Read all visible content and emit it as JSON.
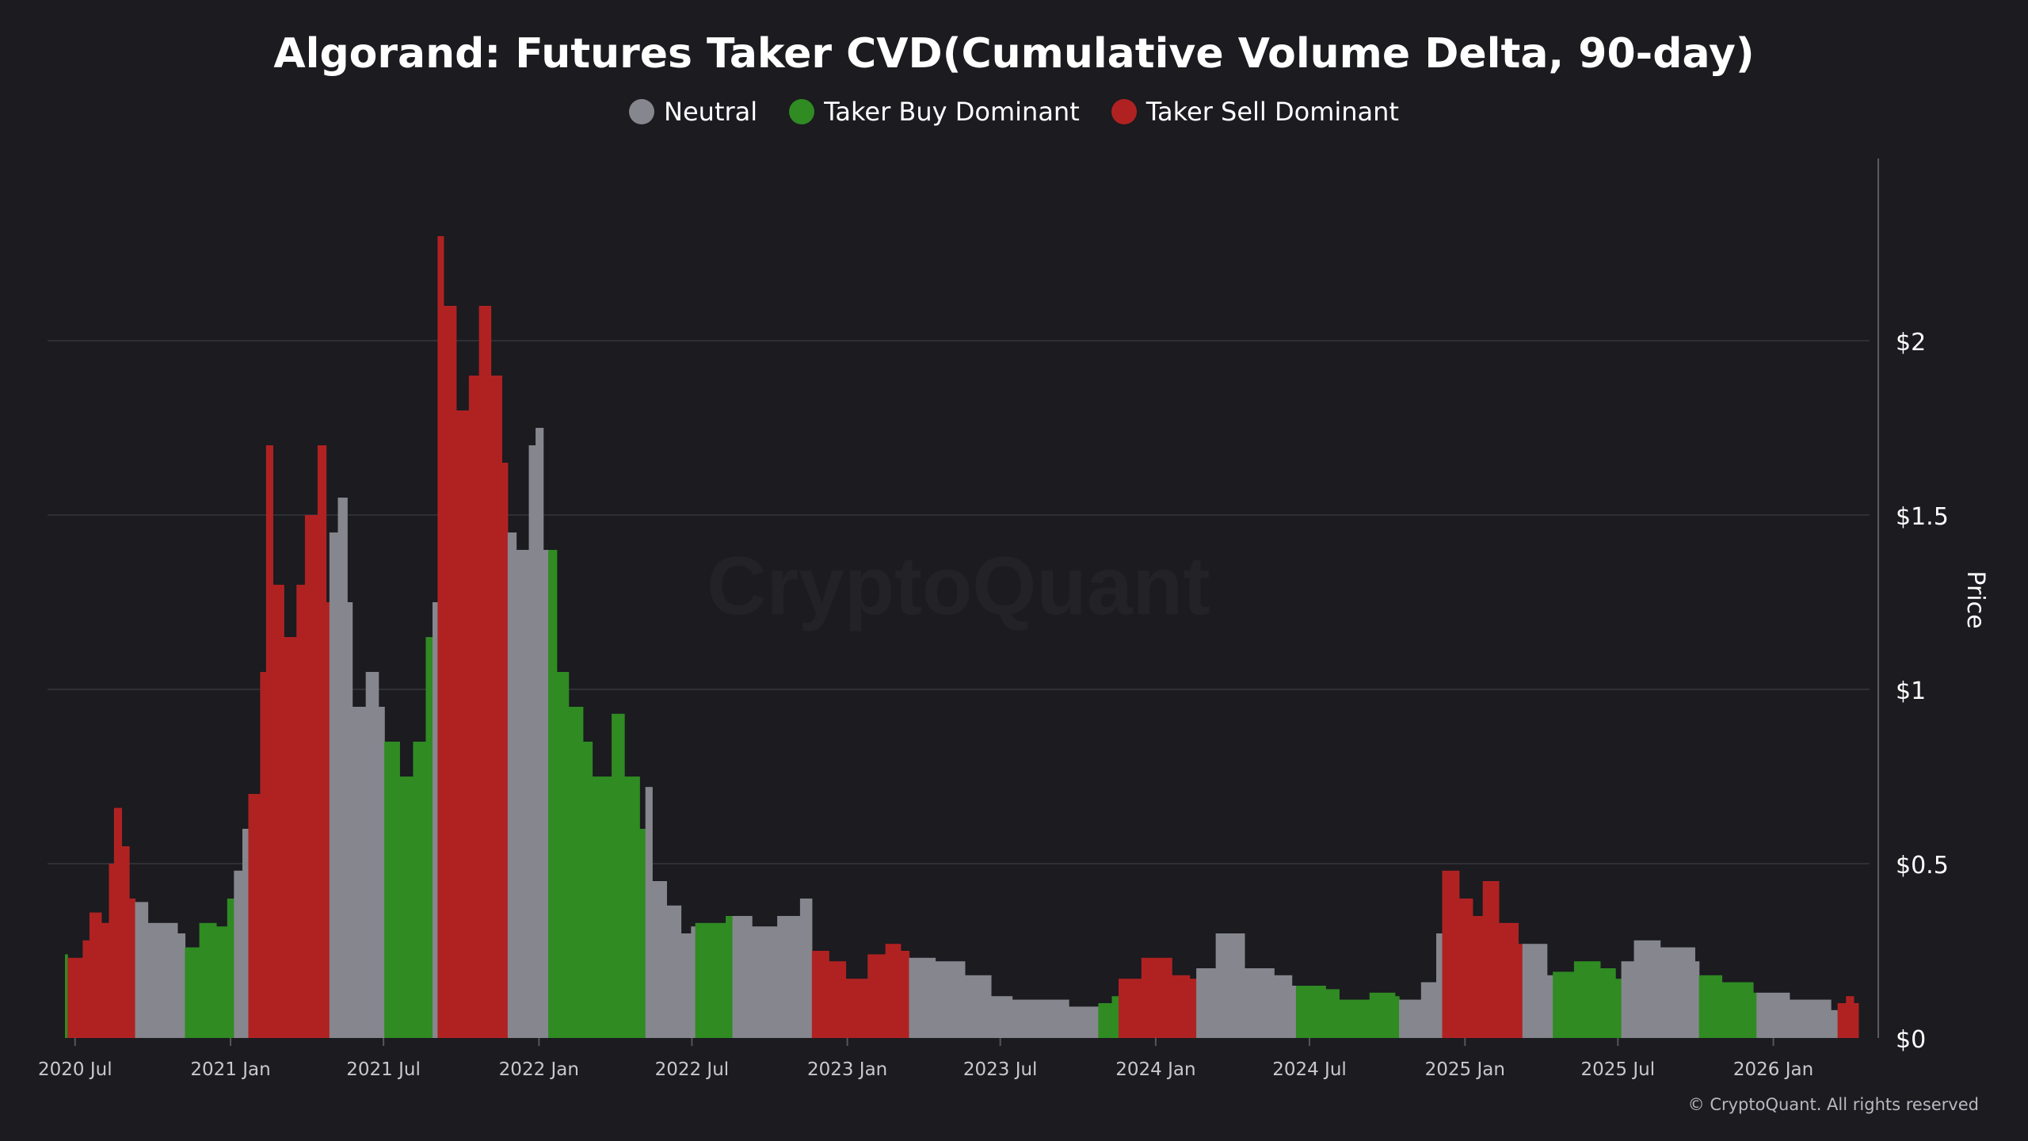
{
  "chart_data": {
    "type": "bar",
    "title": "Algorand: Futures Taker CVD(Cumulative Volume Delta, 90-day)",
    "ylabel": "Price",
    "ylim": [
      0,
      2.5
    ],
    "yticks": [
      {
        "value": 0,
        "label": "$0"
      },
      {
        "value": 0.5,
        "label": "$0.5"
      },
      {
        "value": 1,
        "label": "$1"
      },
      {
        "value": 1.5,
        "label": "$1.5"
      },
      {
        "value": 2,
        "label": "$2"
      }
    ],
    "xlim": [
      "2020-06-19",
      "2026-04-08"
    ],
    "xticks": [
      {
        "date": "2020-07-01",
        "label": "2020 Jul"
      },
      {
        "date": "2021-01-01",
        "label": "2021 Jan"
      },
      {
        "date": "2021-07-01",
        "label": "2021 Jul"
      },
      {
        "date": "2022-01-01",
        "label": "2022 Jan"
      },
      {
        "date": "2022-07-01",
        "label": "2022 Jul"
      },
      {
        "date": "2023-01-01",
        "label": "2023 Jan"
      },
      {
        "date": "2023-07-01",
        "label": "2023 Jul"
      },
      {
        "date": "2024-01-01",
        "label": "2024 Jan"
      },
      {
        "date": "2024-07-01",
        "label": "2024 Jul"
      },
      {
        "date": "2025-01-01",
        "label": "2025 Jan"
      },
      {
        "date": "2025-07-01",
        "label": "2025 Jul"
      },
      {
        "date": "2026-01-01",
        "label": "2026 Jan"
      }
    ],
    "grid": true,
    "legend_position": "top-center",
    "legend": [
      {
        "name": "Neutral",
        "color": "#86868e"
      },
      {
        "name": "Taker Buy Dominant",
        "color": "#2f8b22"
      },
      {
        "name": "Taker Sell Dominant",
        "color": "#b02222"
      }
    ],
    "categories": [
      "Neutral",
      "Taker Buy Dominant",
      "Taker Sell Dominant"
    ],
    "colors": {
      "Neutral": "#86868e",
      "Taker Buy Dominant": "#2f8b22",
      "Taker Sell Dominant": "#b02222"
    },
    "series": [
      {
        "date": "2020-06-19",
        "value": 0.24,
        "category": "Taker Buy Dominant"
      },
      {
        "date": "2020-06-22",
        "value": 0.23,
        "category": "Taker Sell Dominant"
      },
      {
        "date": "2020-07-10",
        "value": 0.28,
        "category": "Taker Sell Dominant"
      },
      {
        "date": "2020-07-18",
        "value": 0.36,
        "category": "Taker Sell Dominant"
      },
      {
        "date": "2020-08-01",
        "value": 0.33,
        "category": "Taker Sell Dominant"
      },
      {
        "date": "2020-08-10",
        "value": 0.5,
        "category": "Taker Sell Dominant"
      },
      {
        "date": "2020-08-16",
        "value": 0.66,
        "category": "Taker Sell Dominant"
      },
      {
        "date": "2020-08-25",
        "value": 0.55,
        "category": "Taker Sell Dominant"
      },
      {
        "date": "2020-09-03",
        "value": 0.4,
        "category": "Taker Sell Dominant"
      },
      {
        "date": "2020-09-10",
        "value": 0.39,
        "category": "Neutral"
      },
      {
        "date": "2020-09-25",
        "value": 0.33,
        "category": "Neutral"
      },
      {
        "date": "2020-10-15",
        "value": 0.33,
        "category": "Neutral"
      },
      {
        "date": "2020-10-30",
        "value": 0.3,
        "category": "Neutral"
      },
      {
        "date": "2020-11-08",
        "value": 0.26,
        "category": "Taker Buy Dominant"
      },
      {
        "date": "2020-11-25",
        "value": 0.33,
        "category": "Taker Buy Dominant"
      },
      {
        "date": "2020-12-15",
        "value": 0.32,
        "category": "Taker Buy Dominant"
      },
      {
        "date": "2020-12-28",
        "value": 0.4,
        "category": "Taker Buy Dominant"
      },
      {
        "date": "2021-01-05",
        "value": 0.48,
        "category": "Neutral"
      },
      {
        "date": "2021-01-15",
        "value": 0.6,
        "category": "Neutral"
      },
      {
        "date": "2021-01-22",
        "value": 0.7,
        "category": "Taker Sell Dominant"
      },
      {
        "date": "2021-02-05",
        "value": 1.05,
        "category": "Taker Sell Dominant"
      },
      {
        "date": "2021-02-12",
        "value": 1.7,
        "category": "Taker Sell Dominant"
      },
      {
        "date": "2021-02-20",
        "value": 1.3,
        "category": "Taker Sell Dominant"
      },
      {
        "date": "2021-03-05",
        "value": 1.15,
        "category": "Taker Sell Dominant"
      },
      {
        "date": "2021-03-20",
        "value": 1.3,
        "category": "Taker Sell Dominant"
      },
      {
        "date": "2021-03-30",
        "value": 1.5,
        "category": "Taker Sell Dominant"
      },
      {
        "date": "2021-04-14",
        "value": 1.7,
        "category": "Taker Sell Dominant"
      },
      {
        "date": "2021-04-24",
        "value": 1.25,
        "category": "Taker Sell Dominant"
      },
      {
        "date": "2021-04-28",
        "value": 1.45,
        "category": "Neutral"
      },
      {
        "date": "2021-05-08",
        "value": 1.55,
        "category": "Neutral"
      },
      {
        "date": "2021-05-19",
        "value": 1.25,
        "category": "Neutral"
      },
      {
        "date": "2021-05-25",
        "value": 0.95,
        "category": "Neutral"
      },
      {
        "date": "2021-06-10",
        "value": 1.05,
        "category": "Neutral"
      },
      {
        "date": "2021-06-25",
        "value": 0.95,
        "category": "Neutral"
      },
      {
        "date": "2021-07-02",
        "value": 0.85,
        "category": "Taker Buy Dominant"
      },
      {
        "date": "2021-07-20",
        "value": 0.75,
        "category": "Taker Buy Dominant"
      },
      {
        "date": "2021-08-05",
        "value": 0.85,
        "category": "Taker Buy Dominant"
      },
      {
        "date": "2021-08-20",
        "value": 1.15,
        "category": "Taker Buy Dominant"
      },
      {
        "date": "2021-08-28",
        "value": 1.25,
        "category": "Neutral"
      },
      {
        "date": "2021-09-03",
        "value": 2.3,
        "category": "Taker Sell Dominant"
      },
      {
        "date": "2021-09-10",
        "value": 2.1,
        "category": "Taker Sell Dominant"
      },
      {
        "date": "2021-09-25",
        "value": 1.8,
        "category": "Taker Sell Dominant"
      },
      {
        "date": "2021-10-10",
        "value": 1.9,
        "category": "Taker Sell Dominant"
      },
      {
        "date": "2021-10-22",
        "value": 2.1,
        "category": "Taker Sell Dominant"
      },
      {
        "date": "2021-11-05",
        "value": 1.9,
        "category": "Taker Sell Dominant"
      },
      {
        "date": "2021-11-18",
        "value": 1.65,
        "category": "Taker Sell Dominant"
      },
      {
        "date": "2021-11-25",
        "value": 1.45,
        "category": "Neutral"
      },
      {
        "date": "2021-12-05",
        "value": 1.4,
        "category": "Neutral"
      },
      {
        "date": "2021-12-20",
        "value": 1.7,
        "category": "Neutral"
      },
      {
        "date": "2021-12-28",
        "value": 1.75,
        "category": "Neutral"
      },
      {
        "date": "2022-01-06",
        "value": 1.4,
        "category": "Neutral"
      },
      {
        "date": "2022-01-12",
        "value": 1.4,
        "category": "Taker Buy Dominant"
      },
      {
        "date": "2022-01-22",
        "value": 1.05,
        "category": "Taker Buy Dominant"
      },
      {
        "date": "2022-02-05",
        "value": 0.95,
        "category": "Taker Buy Dominant"
      },
      {
        "date": "2022-02-22",
        "value": 0.85,
        "category": "Taker Buy Dominant"
      },
      {
        "date": "2022-03-05",
        "value": 0.75,
        "category": "Taker Buy Dominant"
      },
      {
        "date": "2022-03-28",
        "value": 0.93,
        "category": "Taker Buy Dominant"
      },
      {
        "date": "2022-04-12",
        "value": 0.75,
        "category": "Taker Buy Dominant"
      },
      {
        "date": "2022-04-30",
        "value": 0.6,
        "category": "Taker Buy Dominant"
      },
      {
        "date": "2022-05-07",
        "value": 0.72,
        "category": "Neutral"
      },
      {
        "date": "2022-05-15",
        "value": 0.45,
        "category": "Neutral"
      },
      {
        "date": "2022-06-01",
        "value": 0.38,
        "category": "Neutral"
      },
      {
        "date": "2022-06-18",
        "value": 0.3,
        "category": "Neutral"
      },
      {
        "date": "2022-06-30",
        "value": 0.32,
        "category": "Neutral"
      },
      {
        "date": "2022-07-05",
        "value": 0.33,
        "category": "Taker Buy Dominant"
      },
      {
        "date": "2022-08-10",
        "value": 0.35,
        "category": "Taker Buy Dominant"
      },
      {
        "date": "2022-08-18",
        "value": 0.35,
        "category": "Neutral"
      },
      {
        "date": "2022-09-10",
        "value": 0.32,
        "category": "Neutral"
      },
      {
        "date": "2022-10-10",
        "value": 0.35,
        "category": "Neutral"
      },
      {
        "date": "2022-11-06",
        "value": 0.4,
        "category": "Neutral"
      },
      {
        "date": "2022-11-20",
        "value": 0.25,
        "category": "Taker Sell Dominant"
      },
      {
        "date": "2022-12-10",
        "value": 0.22,
        "category": "Taker Sell Dominant"
      },
      {
        "date": "2022-12-30",
        "value": 0.17,
        "category": "Taker Sell Dominant"
      },
      {
        "date": "2023-01-25",
        "value": 0.24,
        "category": "Taker Sell Dominant"
      },
      {
        "date": "2023-02-15",
        "value": 0.27,
        "category": "Taker Sell Dominant"
      },
      {
        "date": "2023-03-05",
        "value": 0.25,
        "category": "Taker Sell Dominant"
      },
      {
        "date": "2023-03-15",
        "value": 0.23,
        "category": "Neutral"
      },
      {
        "date": "2023-04-15",
        "value": 0.22,
        "category": "Neutral"
      },
      {
        "date": "2023-05-20",
        "value": 0.18,
        "category": "Neutral"
      },
      {
        "date": "2023-06-20",
        "value": 0.12,
        "category": "Neutral"
      },
      {
        "date": "2023-07-15",
        "value": 0.11,
        "category": "Neutral"
      },
      {
        "date": "2023-08-20",
        "value": 0.11,
        "category": "Neutral"
      },
      {
        "date": "2023-09-20",
        "value": 0.09,
        "category": "Neutral"
      },
      {
        "date": "2023-10-20",
        "value": 0.09,
        "category": "Neutral"
      },
      {
        "date": "2023-10-25",
        "value": 0.1,
        "category": "Taker Buy Dominant"
      },
      {
        "date": "2023-11-10",
        "value": 0.12,
        "category": "Taker Buy Dominant"
      },
      {
        "date": "2023-11-18",
        "value": 0.17,
        "category": "Taker Sell Dominant"
      },
      {
        "date": "2023-12-15",
        "value": 0.23,
        "category": "Taker Sell Dominant"
      },
      {
        "date": "2024-01-20",
        "value": 0.18,
        "category": "Taker Sell Dominant"
      },
      {
        "date": "2024-02-10",
        "value": 0.17,
        "category": "Taker Sell Dominant"
      },
      {
        "date": "2024-02-18",
        "value": 0.2,
        "category": "Neutral"
      },
      {
        "date": "2024-03-12",
        "value": 0.3,
        "category": "Neutral"
      },
      {
        "date": "2024-04-15",
        "value": 0.2,
        "category": "Neutral"
      },
      {
        "date": "2024-05-20",
        "value": 0.18,
        "category": "Neutral"
      },
      {
        "date": "2024-06-10",
        "value": 0.15,
        "category": "Neutral"
      },
      {
        "date": "2024-06-15",
        "value": 0.15,
        "category": "Taker Buy Dominant"
      },
      {
        "date": "2024-07-20",
        "value": 0.14,
        "category": "Taker Buy Dominant"
      },
      {
        "date": "2024-08-05",
        "value": 0.11,
        "category": "Taker Buy Dominant"
      },
      {
        "date": "2024-09-10",
        "value": 0.13,
        "category": "Taker Buy Dominant"
      },
      {
        "date": "2024-10-10",
        "value": 0.12,
        "category": "Taker Buy Dominant"
      },
      {
        "date": "2024-10-15",
        "value": 0.11,
        "category": "Neutral"
      },
      {
        "date": "2024-11-10",
        "value": 0.16,
        "category": "Neutral"
      },
      {
        "date": "2024-11-28",
        "value": 0.3,
        "category": "Neutral"
      },
      {
        "date": "2024-12-05",
        "value": 0.48,
        "category": "Taker Sell Dominant"
      },
      {
        "date": "2024-12-25",
        "value": 0.4,
        "category": "Taker Sell Dominant"
      },
      {
        "date": "2025-01-10",
        "value": 0.35,
        "category": "Taker Sell Dominant"
      },
      {
        "date": "2025-01-22",
        "value": 0.45,
        "category": "Taker Sell Dominant"
      },
      {
        "date": "2025-02-10",
        "value": 0.33,
        "category": "Taker Sell Dominant"
      },
      {
        "date": "2025-03-05",
        "value": 0.27,
        "category": "Taker Sell Dominant"
      },
      {
        "date": "2025-03-10",
        "value": 0.27,
        "category": "Neutral"
      },
      {
        "date": "2025-04-08",
        "value": 0.18,
        "category": "Neutral"
      },
      {
        "date": "2025-04-15",
        "value": 0.19,
        "category": "Taker Buy Dominant"
      },
      {
        "date": "2025-05-10",
        "value": 0.22,
        "category": "Taker Buy Dominant"
      },
      {
        "date": "2025-06-10",
        "value": 0.2,
        "category": "Taker Buy Dominant"
      },
      {
        "date": "2025-06-28",
        "value": 0.17,
        "category": "Taker Buy Dominant"
      },
      {
        "date": "2025-07-05",
        "value": 0.22,
        "category": "Neutral"
      },
      {
        "date": "2025-07-20",
        "value": 0.28,
        "category": "Neutral"
      },
      {
        "date": "2025-08-20",
        "value": 0.26,
        "category": "Neutral"
      },
      {
        "date": "2025-09-30",
        "value": 0.22,
        "category": "Neutral"
      },
      {
        "date": "2025-10-05",
        "value": 0.18,
        "category": "Taker Buy Dominant"
      },
      {
        "date": "2025-11-01",
        "value": 0.16,
        "category": "Taker Buy Dominant"
      },
      {
        "date": "2025-12-08",
        "value": 0.13,
        "category": "Taker Buy Dominant"
      },
      {
        "date": "2025-12-12",
        "value": 0.13,
        "category": "Neutral"
      },
      {
        "date": "2026-01-20",
        "value": 0.11,
        "category": "Neutral"
      },
      {
        "date": "2026-03-10",
        "value": 0.08,
        "category": "Neutral"
      },
      {
        "date": "2026-03-18",
        "value": 0.1,
        "category": "Taker Sell Dominant"
      },
      {
        "date": "2026-03-28",
        "value": 0.12,
        "category": "Taker Sell Dominant"
      },
      {
        "date": "2026-04-06",
        "value": 0.1,
        "category": "Taker Sell Dominant"
      }
    ]
  },
  "watermark": "CryptoQuant",
  "copyright": "© CryptoQuant. All rights reserved"
}
